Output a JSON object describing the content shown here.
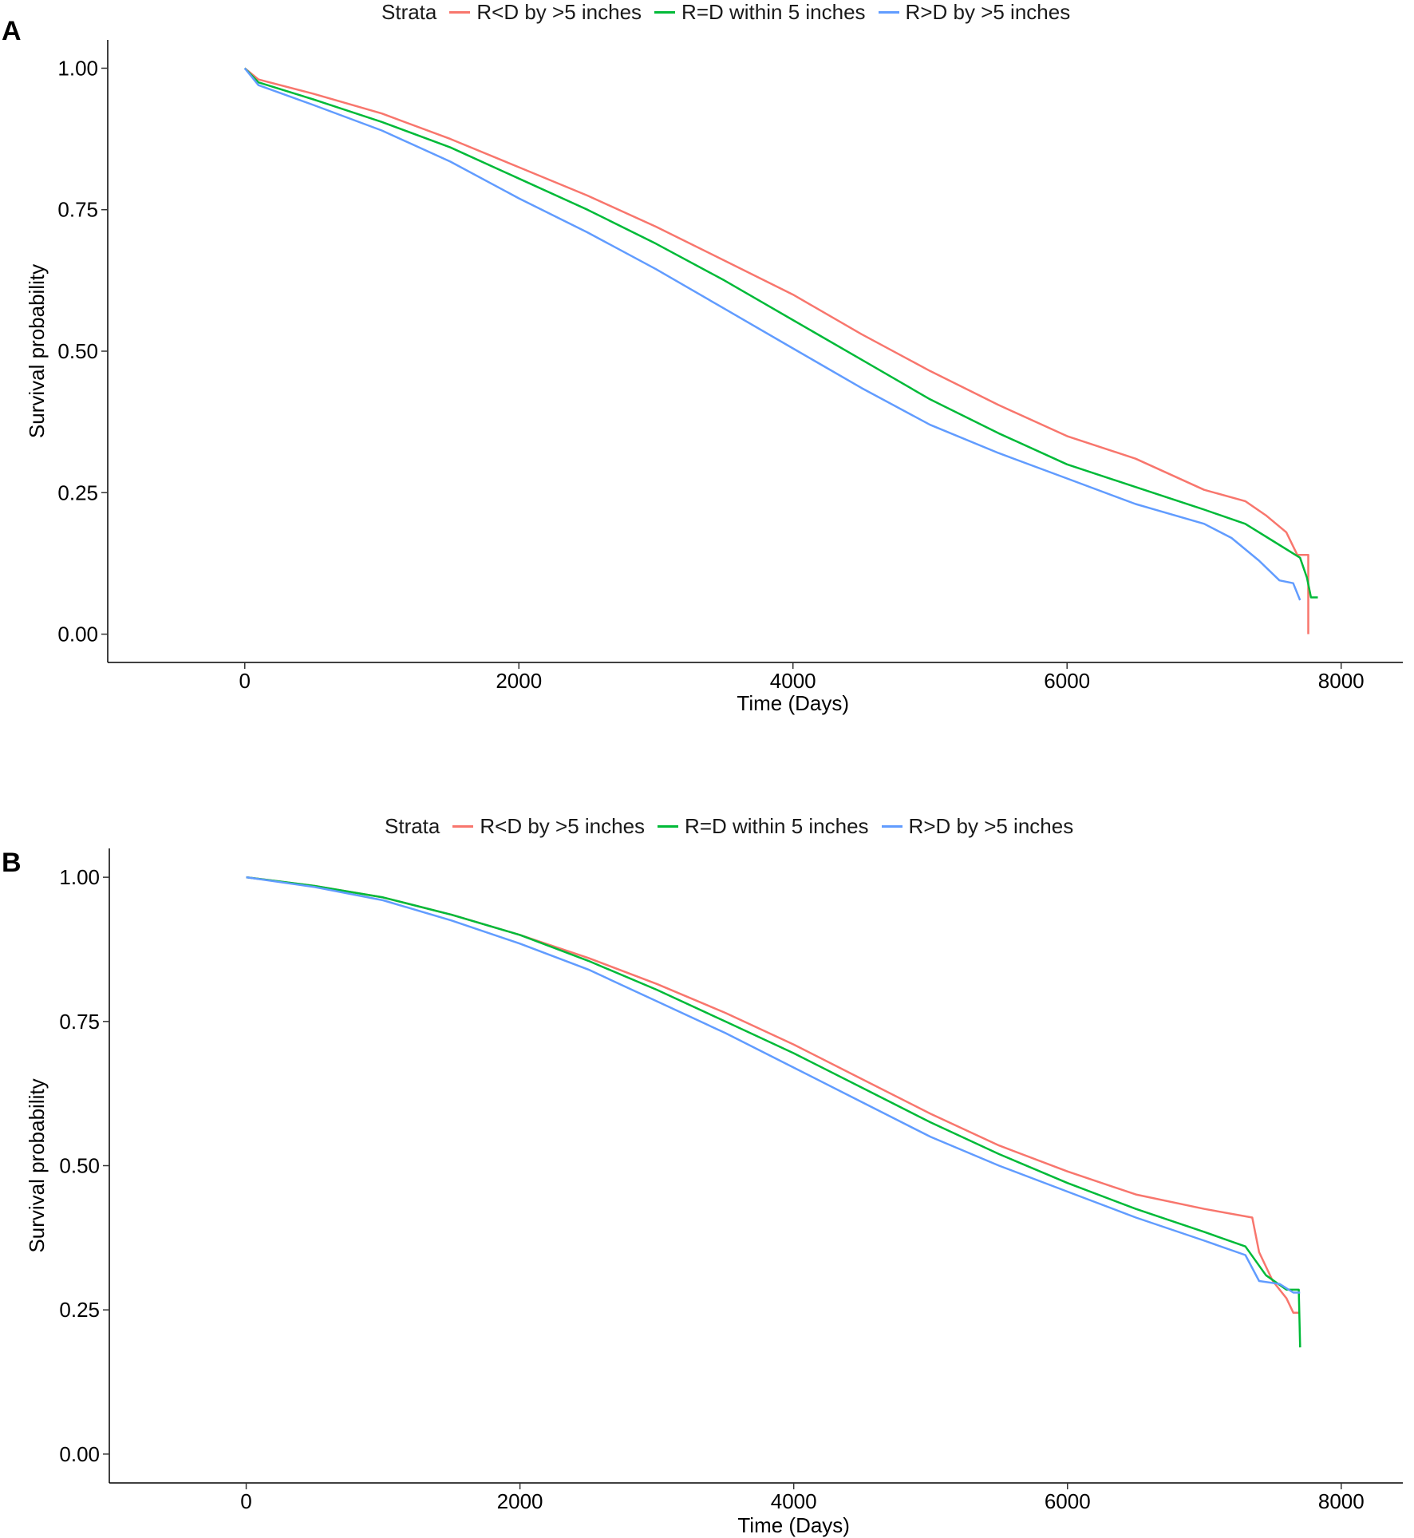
{
  "chart_data": [
    {
      "panel": "A",
      "type": "line",
      "legend_title": "Strata",
      "legend_position": "top",
      "xlabel": "Time (Days)",
      "ylabel": "Survival probability",
      "xlim": [
        -1000,
        8450
      ],
      "ylim": [
        -0.05,
        1.05
      ],
      "xticks": [
        0,
        2000,
        4000,
        6000,
        8000
      ],
      "yticks": [
        0.0,
        0.25,
        0.5,
        0.75,
        1.0
      ],
      "xtick_labels": [
        "0",
        "2000",
        "4000",
        "6000",
        "8000"
      ],
      "ytick_labels": [
        "0.00",
        "0.25",
        "0.50",
        "0.75",
        "1.00"
      ],
      "grid": false,
      "series": [
        {
          "name": "R<D by >5 inches",
          "color": "#F8766D",
          "points": [
            [
              0,
              1.0
            ],
            [
              100,
              0.98
            ],
            [
              500,
              0.955
            ],
            [
              1000,
              0.92
            ],
            [
              1500,
              0.875
            ],
            [
              2000,
              0.825
            ],
            [
              2500,
              0.775
            ],
            [
              3000,
              0.72
            ],
            [
              3500,
              0.66
            ],
            [
              4000,
              0.6
            ],
            [
              4500,
              0.53
            ],
            [
              5000,
              0.465
            ],
            [
              5500,
              0.405
            ],
            [
              6000,
              0.35
            ],
            [
              6500,
              0.31
            ],
            [
              7000,
              0.255
            ],
            [
              7300,
              0.235
            ],
            [
              7450,
              0.21
            ],
            [
              7600,
              0.18
            ],
            [
              7680,
              0.14
            ],
            [
              7760,
              0.14
            ],
            [
              7760,
              0.0
            ]
          ]
        },
        {
          "name": "R=D within 5 inches",
          "color": "#00BA38",
          "points": [
            [
              0,
              1.0
            ],
            [
              100,
              0.975
            ],
            [
              500,
              0.945
            ],
            [
              1000,
              0.905
            ],
            [
              1500,
              0.86
            ],
            [
              2000,
              0.805
            ],
            [
              2500,
              0.75
            ],
            [
              3000,
              0.69
            ],
            [
              3500,
              0.625
            ],
            [
              4000,
              0.555
            ],
            [
              4500,
              0.485
            ],
            [
              5000,
              0.415
            ],
            [
              5500,
              0.355
            ],
            [
              6000,
              0.3
            ],
            [
              6500,
              0.26
            ],
            [
              7000,
              0.22
            ],
            [
              7300,
              0.195
            ],
            [
              7500,
              0.165
            ],
            [
              7700,
              0.135
            ],
            [
              7750,
              0.1
            ],
            [
              7780,
              0.065
            ],
            [
              7830,
              0.065
            ]
          ]
        },
        {
          "name": "R>D by >5 inches",
          "color": "#619CFF",
          "points": [
            [
              0,
              1.0
            ],
            [
              100,
              0.97
            ],
            [
              500,
              0.935
            ],
            [
              1000,
              0.89
            ],
            [
              1500,
              0.835
            ],
            [
              2000,
              0.77
            ],
            [
              2500,
              0.71
            ],
            [
              3000,
              0.645
            ],
            [
              3500,
              0.575
            ],
            [
              4000,
              0.505
            ],
            [
              4500,
              0.435
            ],
            [
              5000,
              0.37
            ],
            [
              5500,
              0.32
            ],
            [
              6000,
              0.275
            ],
            [
              6500,
              0.23
            ],
            [
              7000,
              0.195
            ],
            [
              7200,
              0.17
            ],
            [
              7400,
              0.13
            ],
            [
              7550,
              0.095
            ],
            [
              7650,
              0.09
            ],
            [
              7700,
              0.06
            ]
          ]
        }
      ]
    },
    {
      "panel": "B",
      "type": "line",
      "legend_title": "Strata",
      "legend_position": "top",
      "xlabel": "Time (Days)",
      "ylabel": "Survival probability",
      "xlim": [
        -1000,
        8450
      ],
      "ylim": [
        -0.05,
        1.05
      ],
      "xticks": [
        0,
        2000,
        4000,
        6000,
        8000
      ],
      "yticks": [
        0.0,
        0.25,
        0.5,
        0.75,
        1.0
      ],
      "xtick_labels": [
        "0",
        "2000",
        "4000",
        "6000",
        "8000"
      ],
      "ytick_labels": [
        "0.00",
        "0.25",
        "0.50",
        "0.75",
        "1.00"
      ],
      "grid": false,
      "series": [
        {
          "name": "R<D by >5 inches",
          "color": "#F8766D",
          "points": [
            [
              0,
              1.0
            ],
            [
              500,
              0.985
            ],
            [
              1000,
              0.965
            ],
            [
              1500,
              0.935
            ],
            [
              2000,
              0.9
            ],
            [
              2500,
              0.86
            ],
            [
              3000,
              0.815
            ],
            [
              3500,
              0.765
            ],
            [
              4000,
              0.71
            ],
            [
              4500,
              0.65
            ],
            [
              5000,
              0.59
            ],
            [
              5500,
              0.535
            ],
            [
              6000,
              0.49
            ],
            [
              6500,
              0.45
            ],
            [
              7000,
              0.425
            ],
            [
              7350,
              0.41
            ],
            [
              7400,
              0.35
            ],
            [
              7500,
              0.3
            ],
            [
              7600,
              0.27
            ],
            [
              7650,
              0.245
            ],
            [
              7700,
              0.245
            ]
          ]
        },
        {
          "name": "R=D within 5 inches",
          "color": "#00BA38",
          "points": [
            [
              0,
              1.0
            ],
            [
              500,
              0.985
            ],
            [
              1000,
              0.965
            ],
            [
              1500,
              0.935
            ],
            [
              2000,
              0.9
            ],
            [
              2500,
              0.855
            ],
            [
              3000,
              0.805
            ],
            [
              3500,
              0.75
            ],
            [
              4000,
              0.695
            ],
            [
              4500,
              0.635
            ],
            [
              5000,
              0.575
            ],
            [
              5500,
              0.52
            ],
            [
              6000,
              0.47
            ],
            [
              6500,
              0.425
            ],
            [
              7000,
              0.385
            ],
            [
              7300,
              0.36
            ],
            [
              7450,
              0.31
            ],
            [
              7600,
              0.285
            ],
            [
              7690,
              0.285
            ],
            [
              7700,
              0.185
            ]
          ]
        },
        {
          "name": "R>D by >5 inches",
          "color": "#619CFF",
          "points": [
            [
              0,
              1.0
            ],
            [
              500,
              0.983
            ],
            [
              1000,
              0.96
            ],
            [
              1500,
              0.925
            ],
            [
              2000,
              0.885
            ],
            [
              2500,
              0.84
            ],
            [
              3000,
              0.785
            ],
            [
              3500,
              0.73
            ],
            [
              4000,
              0.67
            ],
            [
              4500,
              0.61
            ],
            [
              5000,
              0.55
            ],
            [
              5500,
              0.5
            ],
            [
              6000,
              0.455
            ],
            [
              6500,
              0.41
            ],
            [
              7000,
              0.37
            ],
            [
              7300,
              0.345
            ],
            [
              7400,
              0.3
            ],
            [
              7550,
              0.295
            ],
            [
              7650,
              0.28
            ],
            [
              7700,
              0.28
            ]
          ]
        }
      ]
    }
  ]
}
